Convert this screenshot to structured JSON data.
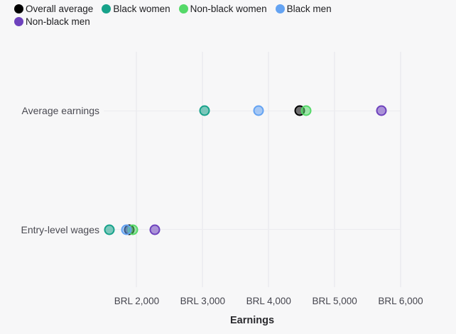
{
  "chart_data": {
    "type": "scatter",
    "subtype": "dot-plot",
    "xlabel": "Earnings",
    "currency": "BRL",
    "grid": true,
    "legend_position": "top-left",
    "x_axis": {
      "min": 1500,
      "max": 6000,
      "ticks": [
        {
          "value": 2000,
          "label": "BRL 2,000"
        },
        {
          "value": 3000,
          "label": "BRL 3,000"
        },
        {
          "value": 4000,
          "label": "BRL 4,000"
        },
        {
          "value": 5000,
          "label": "BRL 5,000"
        },
        {
          "value": 6000,
          "label": "BRL 6,000"
        }
      ]
    },
    "categories": [
      "Average earnings",
      "Entry-level wages"
    ],
    "row_y_pct": [
      25.0,
      75.6
    ],
    "series": [
      {
        "name": "Overall average",
        "color": "#000000",
        "values": [
          4470,
          1890
        ]
      },
      {
        "name": "Black women",
        "color": "#17a28a",
        "values": [
          3030,
          1590
        ]
      },
      {
        "name": "Non-black women",
        "color": "#55d969",
        "values": [
          4570,
          1940
        ]
      },
      {
        "name": "Black men",
        "color": "#64a3f2",
        "values": [
          3850,
          1840
        ]
      },
      {
        "name": "Non-black men",
        "color": "#6e42bd",
        "values": [
          5710,
          2270
        ]
      }
    ]
  },
  "colors": {
    "background": "#f7f7f8",
    "vertical_gridline": "#e6e6ea",
    "row_gridline": "#ececef",
    "legend_text": "#1d1d20",
    "category_text": "#4a4a52",
    "tick_text": "#45454e",
    "axis_title_text": "#2a2a2e",
    "dot_fill_opacity": 0.55
  }
}
